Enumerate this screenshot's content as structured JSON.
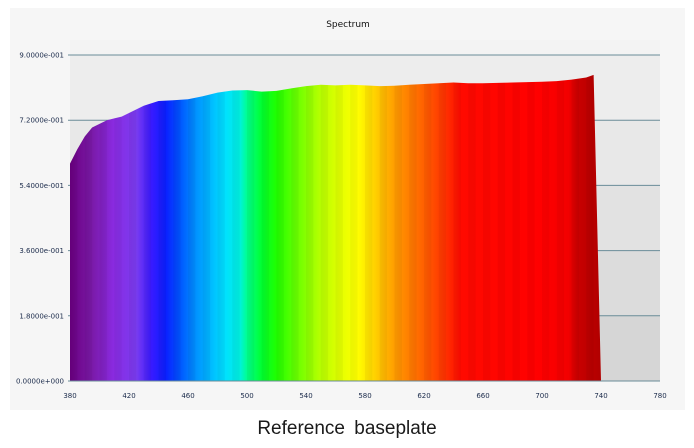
{
  "chart_data": {
    "type": "area",
    "title": "Spectrum",
    "xlabel": "",
    "ylabel": "",
    "xlim": [
      380,
      780
    ],
    "ylim": [
      0,
      0.9
    ],
    "x_ticks": [
      "380",
      "420",
      "460",
      "500",
      "540",
      "580",
      "620",
      "660",
      "700",
      "740",
      "780"
    ],
    "y_ticks": [
      "0.0000e+000",
      "1.8000e-001",
      "3.6000e-001",
      "5.4000e-001",
      "7.2000e-001",
      "9.0000e-001"
    ],
    "grid": true,
    "legend": "none",
    "x": [
      380,
      385,
      390,
      395,
      400,
      405,
      410,
      415,
      420,
      430,
      440,
      450,
      460,
      470,
      480,
      490,
      500,
      510,
      520,
      530,
      540,
      550,
      560,
      570,
      580,
      590,
      600,
      610,
      620,
      630,
      640,
      650,
      660,
      670,
      680,
      690,
      700,
      710,
      720,
      730,
      735,
      740
    ],
    "values": [
      0.6,
      0.64,
      0.675,
      0.7,
      0.71,
      0.72,
      0.725,
      0.73,
      0.74,
      0.76,
      0.773,
      0.775,
      0.778,
      0.786,
      0.796,
      0.802,
      0.803,
      0.799,
      0.801,
      0.808,
      0.814,
      0.818,
      0.816,
      0.818,
      0.816,
      0.814,
      0.815,
      0.818,
      0.82,
      0.822,
      0.824,
      0.822,
      0.822,
      0.823,
      0.824,
      0.825,
      0.826,
      0.828,
      0.832,
      0.838,
      0.845,
      0.0
    ],
    "colors": {
      "plot_background_bands": [
        "#d6d6d6",
        "#dcdcdc",
        "#e2e2e2",
        "#e8e8e8",
        "#ededed",
        "#f3f3f3"
      ],
      "grid": "#6a8c98",
      "outer_background": "#f6f6f6"
    }
  },
  "caption": "Reference baseplate"
}
